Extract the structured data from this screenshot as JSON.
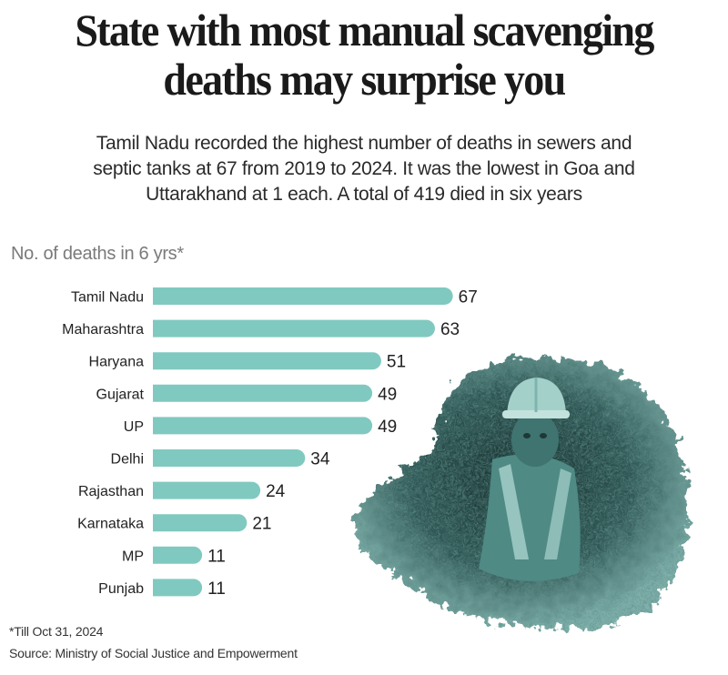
{
  "headline": {
    "line1": "State with most manual scavenging",
    "line2": "deaths may surprise you"
  },
  "subhead": {
    "line1": "Tamil Nadu recorded the highest number of deaths in sewers and",
    "line2": "septic tanks at 67 from 2019 to 2024. It was the lowest in Goa and",
    "line3": "Uttarakhand at 1 each. A total of 419 died in six years"
  },
  "footnote": "*Till Oct 31, 2024",
  "source": "Source: Ministry of Social Justice and Empowerment",
  "photo": {
    "description": "manual-scavenger-in-sewer-photo",
    "tint": "#5f9e98"
  },
  "chart_data": {
    "type": "bar",
    "orientation": "horizontal",
    "title": "State with most manual scavenging deaths may surprise you",
    "ylabel": "No. of deaths in 6 yrs*",
    "xlabel": "",
    "categories": [
      "Tamil Nadu",
      "Maharashtra",
      "Haryana",
      "Gujarat",
      "UP",
      "Delhi",
      "Rajasthan",
      "Karnataka",
      "MP",
      "Punjab"
    ],
    "values": [
      67,
      63,
      51,
      49,
      49,
      34,
      24,
      21,
      11,
      11
    ],
    "data_labels": [
      "67",
      "63",
      "51",
      "49",
      "49",
      "34",
      "24",
      "21",
      "11",
      "11"
    ],
    "xlim": [
      0,
      67
    ],
    "grid": false,
    "legend": "none",
    "bar_color": "#80c9c0"
  }
}
